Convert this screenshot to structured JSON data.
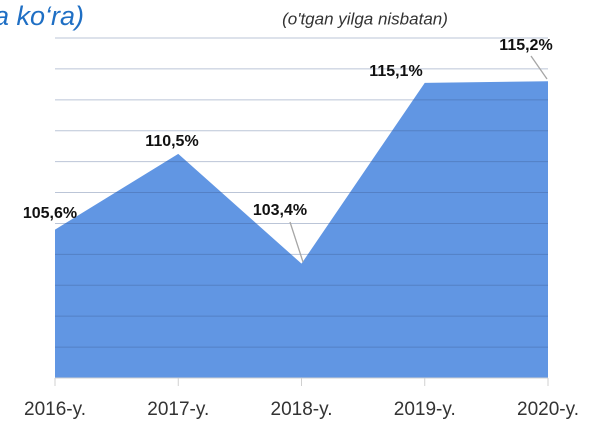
{
  "chart_data": {
    "type": "area",
    "title": "a ko‘ra)",
    "subtitle": "(o'tgan yilga nisbatan)",
    "categories": [
      "2016-y.",
      "2017-y.",
      "2018-y.",
      "2019-y.",
      "2020-y."
    ],
    "values": [
      105.6,
      110.5,
      103.4,
      115.1,
      115.2
    ],
    "value_labels": [
      "105,6%",
      "110,5%",
      "103,4%",
      "115,1%",
      "115,2%"
    ],
    "color": "#6196e3",
    "ylim": [
      96,
      118
    ],
    "yticks": [
      96,
      98,
      100,
      102,
      104,
      106,
      108,
      110,
      112,
      114,
      116,
      118
    ],
    "grid": true
  }
}
